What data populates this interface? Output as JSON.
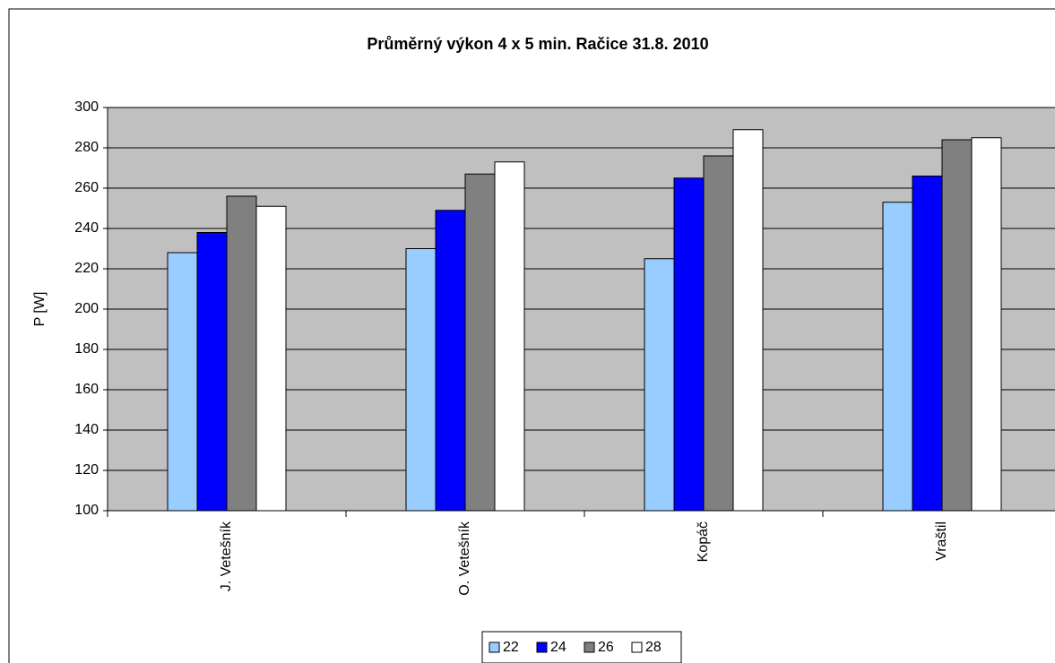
{
  "chart_data": {
    "type": "bar",
    "title": "Průměrný výkon  4 x 5 min.  Račice 31.8. 2010",
    "y_label": "P [W]",
    "categories": [
      "J. Vetešník",
      "O. Vetešník",
      "Kopáč",
      "Vraštil"
    ],
    "series": [
      {
        "name": "22",
        "color": "#99ccff",
        "values": [
          228,
          230,
          225,
          253
        ]
      },
      {
        "name": "24",
        "color": "#0000ff",
        "values": [
          238,
          249,
          265,
          266
        ]
      },
      {
        "name": "26",
        "color": "#808080",
        "values": [
          256,
          267,
          276,
          284
        ]
      },
      {
        "name": "28",
        "color": "#ffffff",
        "values": [
          251,
          273,
          289,
          285
        ]
      }
    ],
    "ylim": [
      100,
      300
    ],
    "yticks": [
      100,
      120,
      140,
      160,
      180,
      200,
      220,
      240,
      260,
      280,
      300
    ],
    "grid": true,
    "legend": "bottom"
  }
}
